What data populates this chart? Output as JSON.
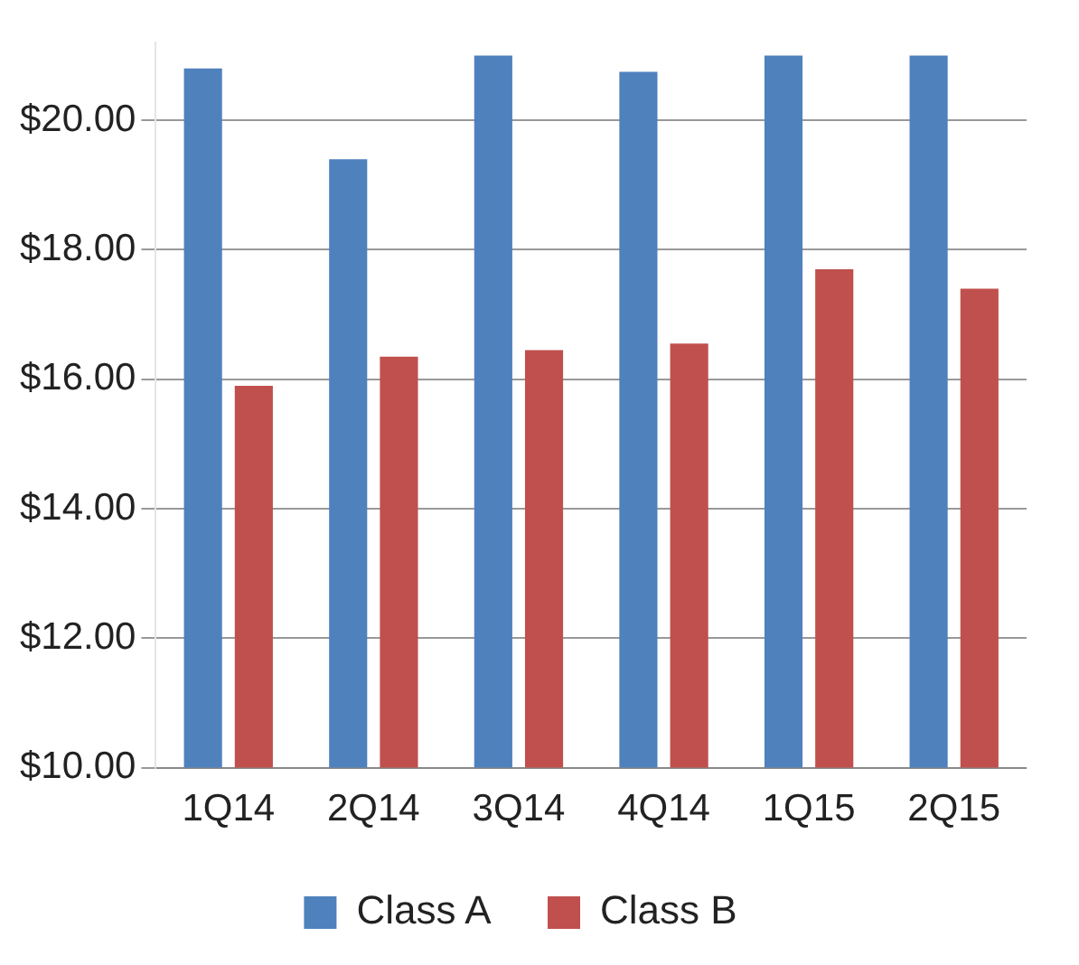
{
  "chart_data": {
    "type": "bar",
    "categories": [
      "1Q14",
      "2Q14",
      "3Q14",
      "4Q14",
      "1Q15",
      "2Q15"
    ],
    "series": [
      {
        "name": "Class A",
        "color": "#4f81bd",
        "values": [
          20.8,
          19.4,
          21.0,
          20.75,
          21.0,
          21.0
        ]
      },
      {
        "name": "Class B",
        "color": "#c0504d",
        "values": [
          15.9,
          16.35,
          16.45,
          16.55,
          17.7,
          17.4
        ]
      }
    ],
    "ylim": [
      10,
      21.2
    ],
    "yticks": [
      {
        "value": 10,
        "label": "$10.00"
      },
      {
        "value": 12,
        "label": "$12.00"
      },
      {
        "value": 14,
        "label": "$14.00"
      },
      {
        "value": 16,
        "label": "$16.00"
      },
      {
        "value": 18,
        "label": "$18.00"
      },
      {
        "value": 20,
        "label": "$20.00"
      }
    ],
    "grid": "y",
    "legend": "bottom"
  }
}
